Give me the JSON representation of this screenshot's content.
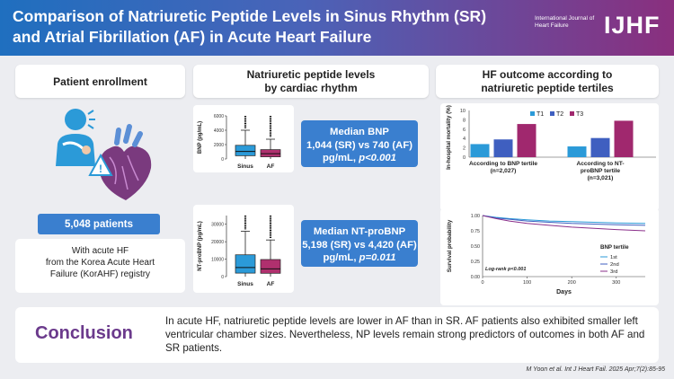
{
  "header": {
    "title_line1": "Comparison of Natriuretic Peptide Levels in Sinus Rhythm (SR)",
    "title_line2": "and Atrial Fibrillation (AF) in Acute Heart Failure",
    "journal_line1": "International Journal of",
    "journal_line2": "Heart Failure",
    "journal_logo": "IJHF"
  },
  "panels": {
    "enrollment": "Patient enrollment",
    "np_line1": "Natriuretic peptide levels",
    "np_line2": "by cardiac rhythm",
    "outcome_line1": "HF outcome according to",
    "outcome_line2": "natriuretic peptide tertiles"
  },
  "enrollment": {
    "patients": "5,048 patients",
    "desc_line1": "With acute HF",
    "desc_line2": "from the Korea Acute Heart",
    "desc_line3": "Failure (KorAHF) registry"
  },
  "bnp_median": {
    "line1": "Median BNP",
    "line2": "1,044 (SR) vs 740 (AF)",
    "line3_prefix": "pg/mL, ",
    "line3_p": "p<0.001"
  },
  "ntprobnp_median": {
    "line1": "Median NT-proBNP",
    "line2": "5,198 (SR) vs 4,420 (AF)",
    "line3_prefix": "pg/mL, ",
    "line3_p": "p=0.011"
  },
  "conclusion": {
    "label": "Conclusion",
    "text": "In acute HF, natriuretic peptide levels are lower in AF than in SR. AF patients also exhibited smaller left ventricular chamber sizes. Nevertheless, NP levels remain strong predictors of outcomes in both AF and SR patients."
  },
  "citation": "M Yoon et al. Int J Heart Fail. 2025 Apr;7(2):85-95",
  "colors": {
    "sinus": "#2b9ad8",
    "af": "#b0306e",
    "t1": "#2b9ad8",
    "t2": "#3f5fc0",
    "t3": "#a0286e",
    "km_1st": "#2b9ad8",
    "km_2nd": "#3f5fc0",
    "km_3rd": "#8a2f8a"
  },
  "chart_data": [
    {
      "type": "box",
      "name": "BNP by rhythm",
      "ylabel": "BNP (pg/mL)",
      "categories": [
        "Sinus",
        "AF"
      ],
      "ylim": [
        0,
        6000
      ],
      "yticks": [
        "0",
        "2000",
        "4000",
        "6000"
      ],
      "boxes": [
        {
          "q1": 450,
          "median": 1044,
          "q3": 1900,
          "whisker_low": 0,
          "whisker_high": 4000,
          "outlier_top": 6000
        },
        {
          "q1": 300,
          "median": 740,
          "q3": 1300,
          "whisker_low": 0,
          "whisker_high": 2750,
          "outlier_top": 6000
        }
      ]
    },
    {
      "type": "box",
      "name": "NT-proBNP by rhythm",
      "ylabel": "NT-proBNP (pg/mL)",
      "categories": [
        "Sinus",
        "AF"
      ],
      "ylim": [
        0,
        35000
      ],
      "yticks": [
        "0",
        "10000",
        "20000",
        "30000"
      ],
      "boxes": [
        {
          "q1": 2000,
          "median": 5198,
          "q3": 12500,
          "whisker_low": 0,
          "whisker_high": 26000,
          "outlier_top": 35000
        },
        {
          "q1": 1900,
          "median": 4420,
          "q3": 9800,
          "whisker_low": 0,
          "whisker_high": 21000,
          "outlier_top": 35000
        }
      ]
    },
    {
      "type": "bar",
      "name": "In-hospital mortality by tertile",
      "ylabel": "In-hospital mortality (%)",
      "ylim": [
        0,
        10
      ],
      "yticks": [
        "0",
        "2",
        "4",
        "6",
        "8",
        "10"
      ],
      "categories": [
        {
          "line1": "According to BNP tertile",
          "line2": "(n=2,027)"
        },
        {
          "line1": "According to NT-",
          "line2": "proBNP tertile",
          "line3": "(n=3,021)"
        }
      ],
      "series": [
        {
          "name": "T1",
          "values": [
            2.8,
            2.3
          ]
        },
        {
          "name": "T2",
          "values": [
            3.8,
            4.1
          ]
        },
        {
          "name": "T3",
          "values": [
            7.1,
            7.8
          ]
        }
      ]
    },
    {
      "type": "line",
      "name": "Kaplan-Meier survival",
      "ylabel": "Survival probability",
      "xlabel": "Days",
      "xlim": [
        0,
        365
      ],
      "ylim": [
        0,
        1.0
      ],
      "xticks": [
        "0",
        "100",
        "200",
        "300"
      ],
      "yticks": [
        "0.00",
        "0.25",
        "0.50",
        "0.75",
        "1.00"
      ],
      "annotation": "Log-rank p<0.001",
      "legend_title": "BNP tertile",
      "x": [
        0,
        30,
        60,
        100,
        150,
        200,
        250,
        300,
        365
      ],
      "series": [
        {
          "name": "1st",
          "values": [
            1.0,
            0.97,
            0.95,
            0.93,
            0.91,
            0.9,
            0.89,
            0.88,
            0.87
          ]
        },
        {
          "name": "2nd",
          "values": [
            1.0,
            0.96,
            0.94,
            0.91,
            0.89,
            0.87,
            0.86,
            0.85,
            0.84
          ]
        },
        {
          "name": "3rd",
          "values": [
            1.0,
            0.95,
            0.91,
            0.87,
            0.84,
            0.81,
            0.79,
            0.77,
            0.75
          ]
        }
      ]
    }
  ]
}
